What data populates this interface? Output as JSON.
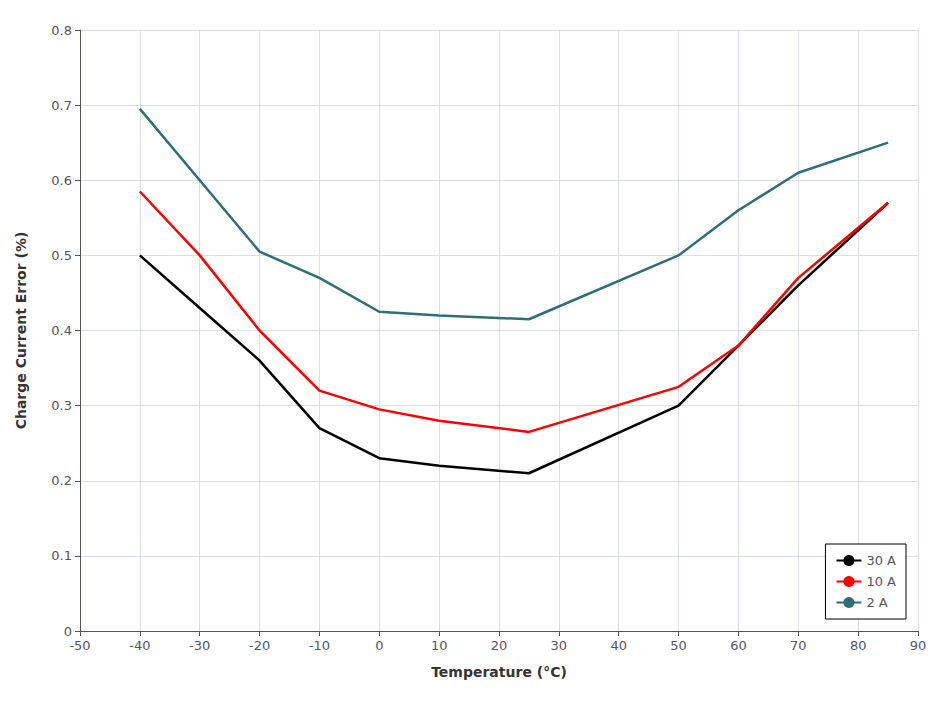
{
  "chart_data": {
    "type": "line",
    "xlabel": "Temperature (°C)",
    "ylabel": "Charge Current Error (%)",
    "xlim": [
      -50,
      90
    ],
    "ylim": [
      0,
      0.8
    ],
    "xticks": [
      -50,
      -40,
      -30,
      -20,
      -10,
      0,
      10,
      20,
      30,
      40,
      50,
      60,
      70,
      80,
      90
    ],
    "yticks": [
      0,
      0.1,
      0.2,
      0.3,
      0.4,
      0.5,
      0.6,
      0.7,
      0.8
    ],
    "grid": true,
    "legend": "lower right",
    "series": [
      {
        "name": "30 A",
        "color": "#000000",
        "x": [
          -40,
          -30,
          -20,
          -10,
          0,
          10,
          25,
          50,
          60,
          70,
          85
        ],
        "values": [
          0.5,
          0.43,
          0.36,
          0.27,
          0.23,
          0.22,
          0.21,
          0.3,
          0.38,
          0.46,
          0.57
        ]
      },
      {
        "name": "10 A",
        "color": "#ff0000",
        "x": [
          -40,
          -30,
          -20,
          -10,
          0,
          10,
          25,
          50,
          60,
          70,
          85
        ],
        "values": [
          0.585,
          0.5,
          0.4,
          0.32,
          0.295,
          0.28,
          0.265,
          0.325,
          0.38,
          0.47,
          0.57
        ]
      },
      {
        "name": "2 A",
        "color": "#2e6e75",
        "x": [
          -40,
          -30,
          -20,
          -10,
          0,
          10,
          25,
          50,
          60,
          70,
          85
        ],
        "values": [
          0.695,
          0.6,
          0.505,
          0.47,
          0.425,
          0.42,
          0.415,
          0.5,
          0.56,
          0.61,
          0.65
        ]
      }
    ]
  }
}
